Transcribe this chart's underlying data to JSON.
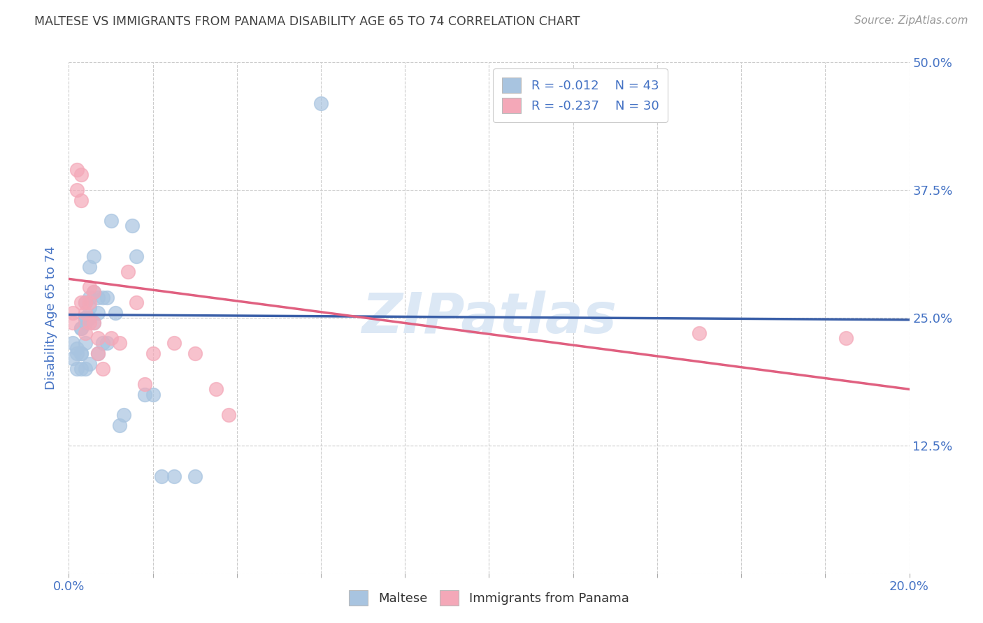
{
  "title": "MALTESE VS IMMIGRANTS FROM PANAMA DISABILITY AGE 65 TO 74 CORRELATION CHART",
  "source": "Source: ZipAtlas.com",
  "ylabel": "Disability Age 65 to 74",
  "xlim": [
    0.0,
    0.2
  ],
  "ylim": [
    0.0,
    0.5
  ],
  "xticks": [
    0.0,
    0.02,
    0.04,
    0.06,
    0.08,
    0.1,
    0.12,
    0.14,
    0.16,
    0.18,
    0.2
  ],
  "yticks": [
    0.0,
    0.125,
    0.25,
    0.375,
    0.5
  ],
  "right_ytick_labels": [
    "",
    "12.5%",
    "25.0%",
    "37.5%",
    "50.0%"
  ],
  "xtick_labels": [
    "0.0%",
    "",
    "",
    "",
    "",
    "",
    "",
    "",
    "",
    "",
    "20.0%"
  ],
  "legend_r1": "R = -0.012",
  "legend_n1": "N = 43",
  "legend_r2": "R = -0.237",
  "legend_n2": "N = 30",
  "maltese_color": "#a8c4e0",
  "panama_color": "#f4a8b8",
  "maltese_line_color": "#3a5fa8",
  "panama_line_color": "#e06080",
  "axis_label_color": "#4472c4",
  "title_color": "#404040",
  "watermark_color": "#dce8f5",
  "background_color": "#ffffff",
  "maltese_x": [
    0.001,
    0.001,
    0.002,
    0.002,
    0.002,
    0.003,
    0.003,
    0.003,
    0.003,
    0.003,
    0.004,
    0.004,
    0.004,
    0.004,
    0.004,
    0.004,
    0.005,
    0.005,
    0.005,
    0.005,
    0.005,
    0.006,
    0.006,
    0.006,
    0.007,
    0.007,
    0.007,
    0.008,
    0.008,
    0.009,
    0.009,
    0.01,
    0.011,
    0.012,
    0.013,
    0.015,
    0.016,
    0.018,
    0.02,
    0.022,
    0.025,
    0.03,
    0.06
  ],
  "maltese_y": [
    0.225,
    0.21,
    0.22,
    0.215,
    0.2,
    0.24,
    0.24,
    0.215,
    0.215,
    0.2,
    0.265,
    0.25,
    0.25,
    0.245,
    0.225,
    0.2,
    0.3,
    0.27,
    0.26,
    0.25,
    0.205,
    0.31,
    0.275,
    0.245,
    0.27,
    0.255,
    0.215,
    0.27,
    0.225,
    0.27,
    0.225,
    0.345,
    0.255,
    0.145,
    0.155,
    0.34,
    0.31,
    0.175,
    0.175,
    0.095,
    0.095,
    0.095,
    0.46
  ],
  "panama_x": [
    0.001,
    0.001,
    0.002,
    0.002,
    0.003,
    0.003,
    0.003,
    0.004,
    0.004,
    0.004,
    0.005,
    0.005,
    0.005,
    0.006,
    0.006,
    0.007,
    0.007,
    0.008,
    0.01,
    0.012,
    0.014,
    0.016,
    0.018,
    0.02,
    0.025,
    0.03,
    0.035,
    0.038,
    0.15,
    0.185
  ],
  "panama_y": [
    0.255,
    0.245,
    0.395,
    0.375,
    0.39,
    0.365,
    0.265,
    0.265,
    0.255,
    0.235,
    0.28,
    0.265,
    0.245,
    0.275,
    0.245,
    0.23,
    0.215,
    0.2,
    0.23,
    0.225,
    0.295,
    0.265,
    0.185,
    0.215,
    0.225,
    0.215,
    0.18,
    0.155,
    0.235,
    0.23
  ],
  "maltese_trend_x": [
    0.0,
    0.2
  ],
  "maltese_trend_y": [
    0.253,
    0.248
  ],
  "panama_trend_x": [
    0.0,
    0.2
  ],
  "panama_trend_y": [
    0.288,
    0.18
  ]
}
